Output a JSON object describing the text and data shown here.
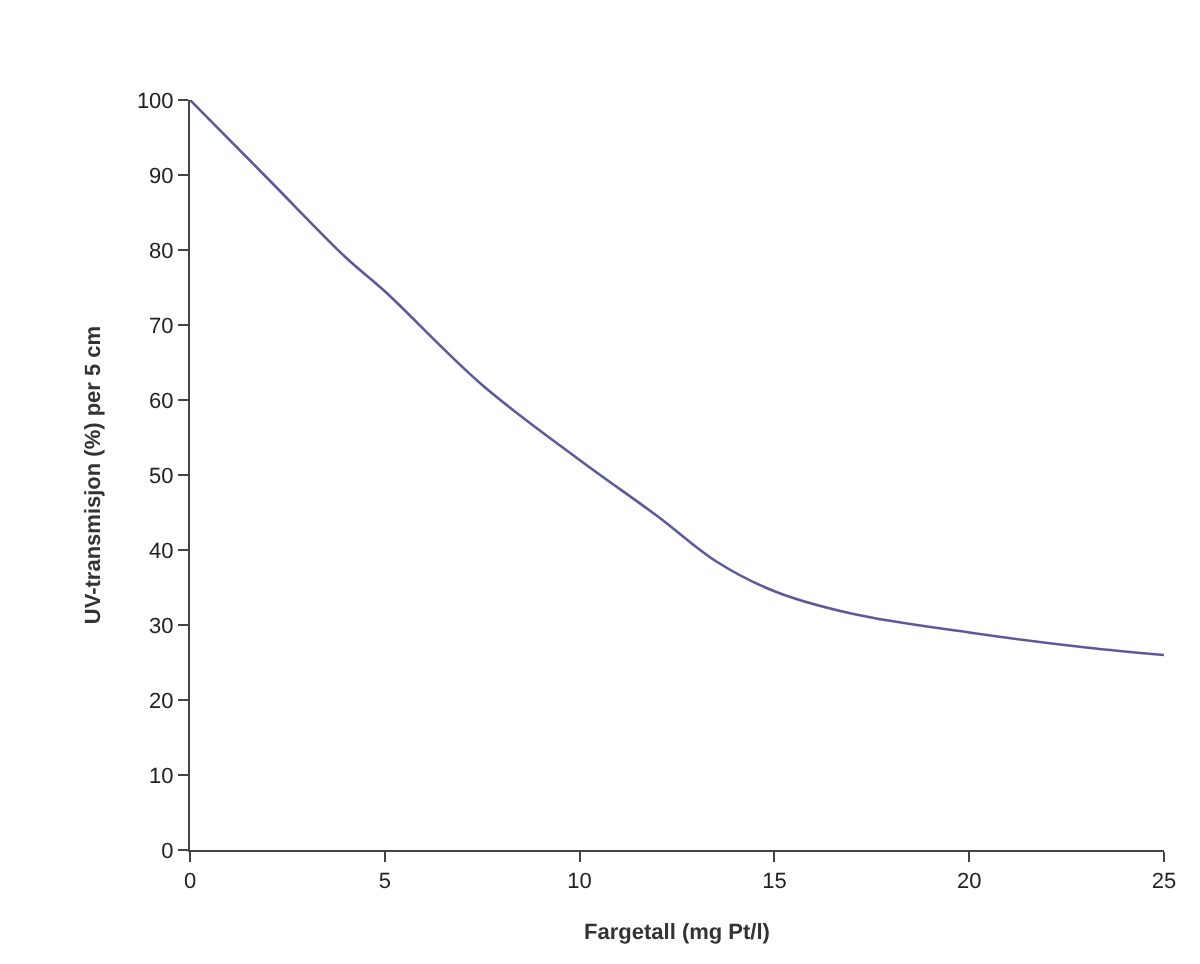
{
  "chart_data": {
    "type": "line",
    "xlabel": "Fargetall (mg Pt/l)",
    "ylabel": "UV-transmisjon (%) per 5 cm",
    "x": [
      0,
      2,
      4,
      5,
      7.5,
      10,
      12,
      13.5,
      15,
      17,
      20,
      23,
      25
    ],
    "series": [
      {
        "color": "#5a5a9a",
        "values": [
          100,
          89.5,
          79,
          74.5,
          62,
          52,
          44.5,
          38.5,
          34.5,
          31.5,
          29,
          27,
          26
        ]
      }
    ],
    "xlim": [
      0,
      25
    ],
    "xticks": [
      0,
      5,
      10,
      15,
      20,
      25
    ],
    "ylim": [
      0,
      100
    ],
    "yticks": [
      0,
      10,
      20,
      30,
      40,
      50,
      60,
      70,
      80,
      90,
      100
    ],
    "marker": "none",
    "line_style": "solid"
  }
}
